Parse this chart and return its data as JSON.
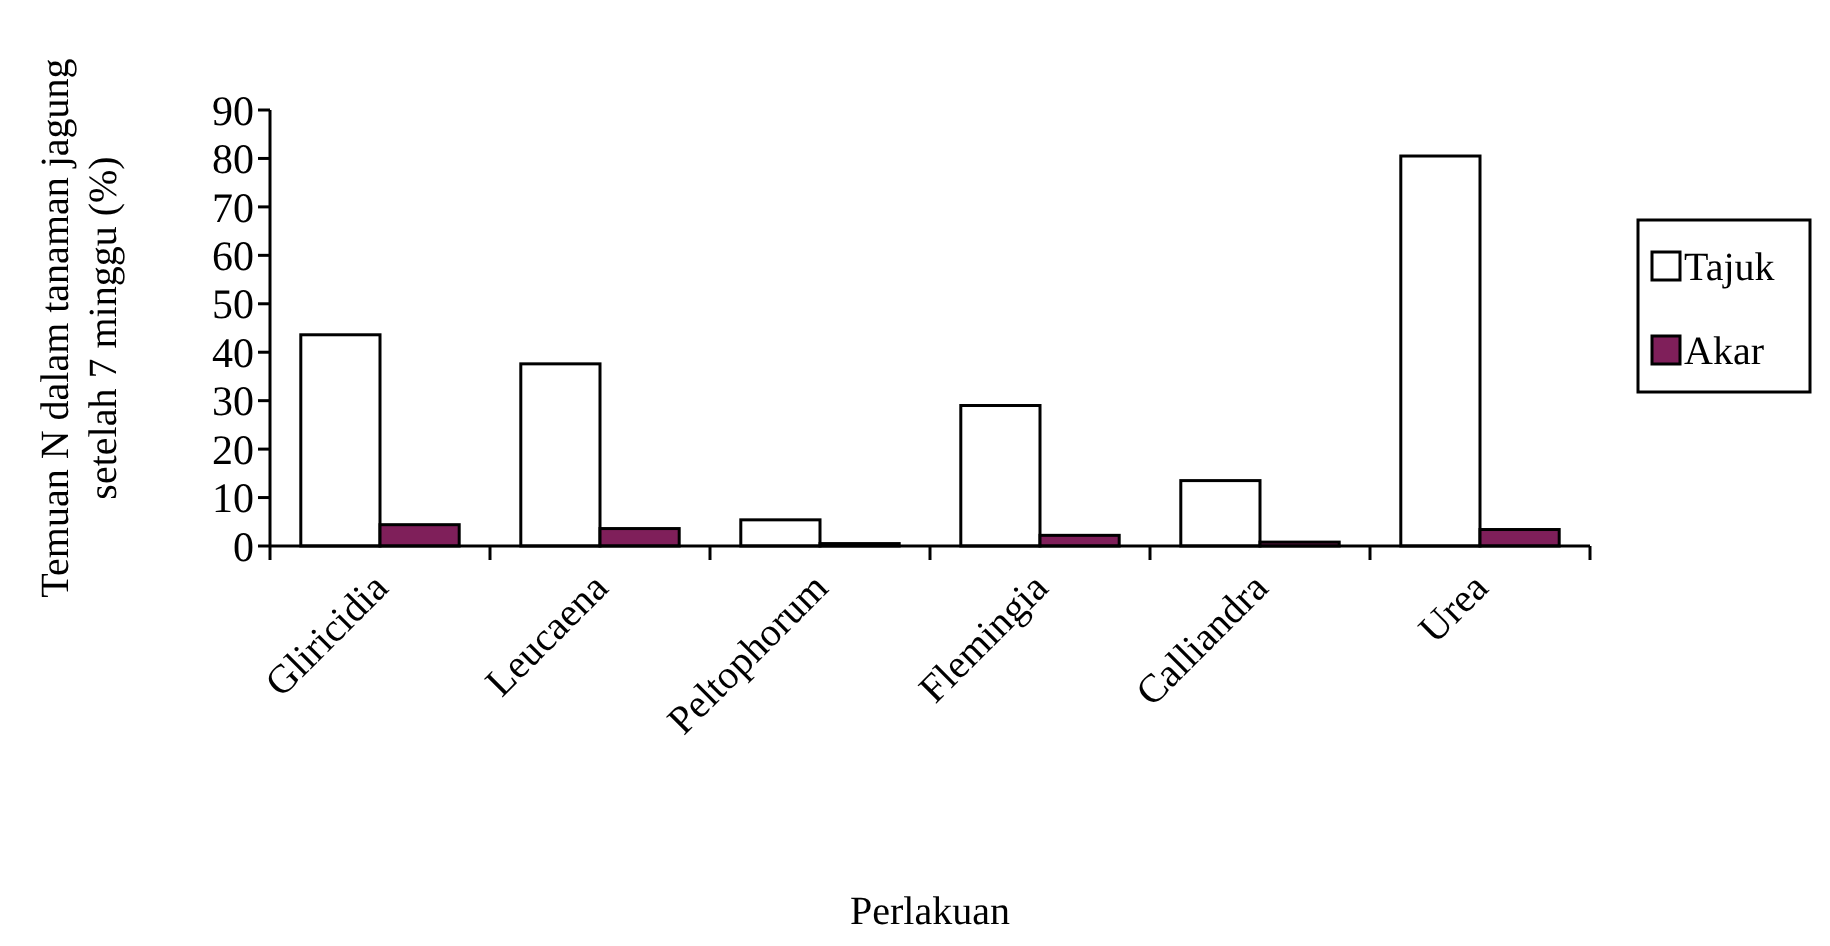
{
  "chart_data": {
    "type": "bar",
    "xlabel": "Perlakuan",
    "ylabel": "Temuan N dalam tanaman jagung\nsetelah 7 minggu (%)",
    "categories": [
      "Gliricidia",
      "Leucaena",
      "Peltophorum",
      "Flemingia",
      "Calliandra",
      "Urea"
    ],
    "series": [
      {
        "name": "Tajuk",
        "color": "#ffffff",
        "values": [
          43.6,
          37.6,
          5.4,
          29.0,
          13.5,
          80.5
        ]
      },
      {
        "name": "Akar",
        "color": "#7f1f5a",
        "values": [
          4.4,
          3.6,
          0.5,
          2.2,
          0.8,
          3.4
        ]
      }
    ],
    "ylim": [
      0,
      90
    ],
    "yticks": [
      0,
      10,
      20,
      30,
      40,
      50,
      60,
      70,
      80,
      90
    ],
    "grid": false,
    "legend": "right"
  }
}
